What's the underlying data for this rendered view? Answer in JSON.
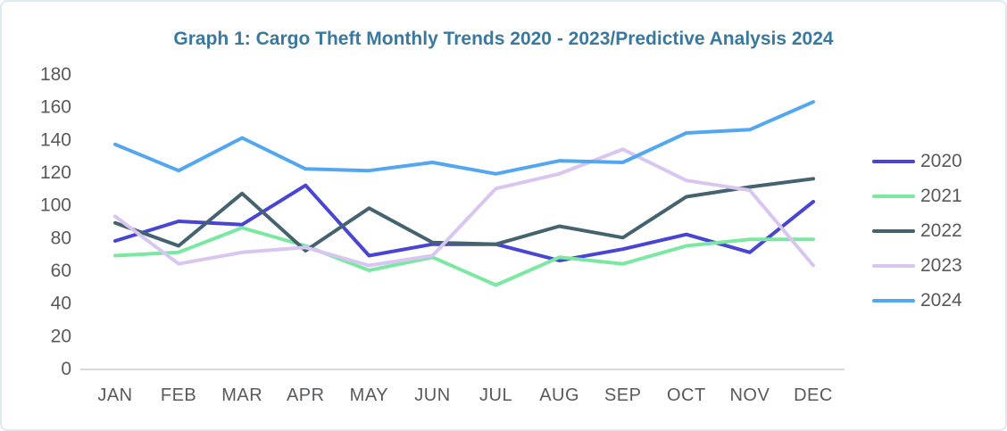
{
  "chart_data": {
    "type": "line",
    "title": "Graph 1: Cargo Theft Monthly Trends 2020 - 2023/Predictive Analysis 2024",
    "categories": [
      "JAN",
      "FEB",
      "MAR",
      "APR",
      "MAY",
      "JUN",
      "JUL",
      "AUG",
      "SEP",
      "OCT",
      "NOV",
      "DEC"
    ],
    "series": [
      {
        "name": "2020",
        "color": "#4845d4",
        "values": [
          78,
          90,
          88,
          112,
          69,
          76,
          76,
          66,
          73,
          82,
          71,
          102
        ]
      },
      {
        "name": "2021",
        "color": "#7be8a2",
        "values": [
          69,
          71,
          86,
          75,
          60,
          68,
          51,
          68,
          64,
          75,
          79,
          79
        ]
      },
      {
        "name": "2022",
        "color": "#45626f",
        "values": [
          89,
          75,
          107,
          72,
          98,
          77,
          76,
          87,
          80,
          105,
          111,
          116
        ]
      },
      {
        "name": "2023",
        "color": "#d9c6f0",
        "values": [
          93,
          64,
          71,
          74,
          63,
          69,
          110,
          119,
          134,
          115,
          109,
          63
        ]
      },
      {
        "name": "2024",
        "color": "#52a7f0",
        "values": [
          137,
          121,
          141,
          122,
          121,
          126,
          119,
          127,
          126,
          144,
          146,
          163
        ]
      }
    ],
    "xlabel": "",
    "ylabel": "",
    "ylim": [
      0,
      180
    ],
    "ytick_step": 20,
    "grid": false,
    "legend_position": "right"
  },
  "colors": {
    "title": "#39789f",
    "axis_text": "#58595b",
    "axis_line": "#d9d9d9",
    "border": "#dcebf1"
  }
}
